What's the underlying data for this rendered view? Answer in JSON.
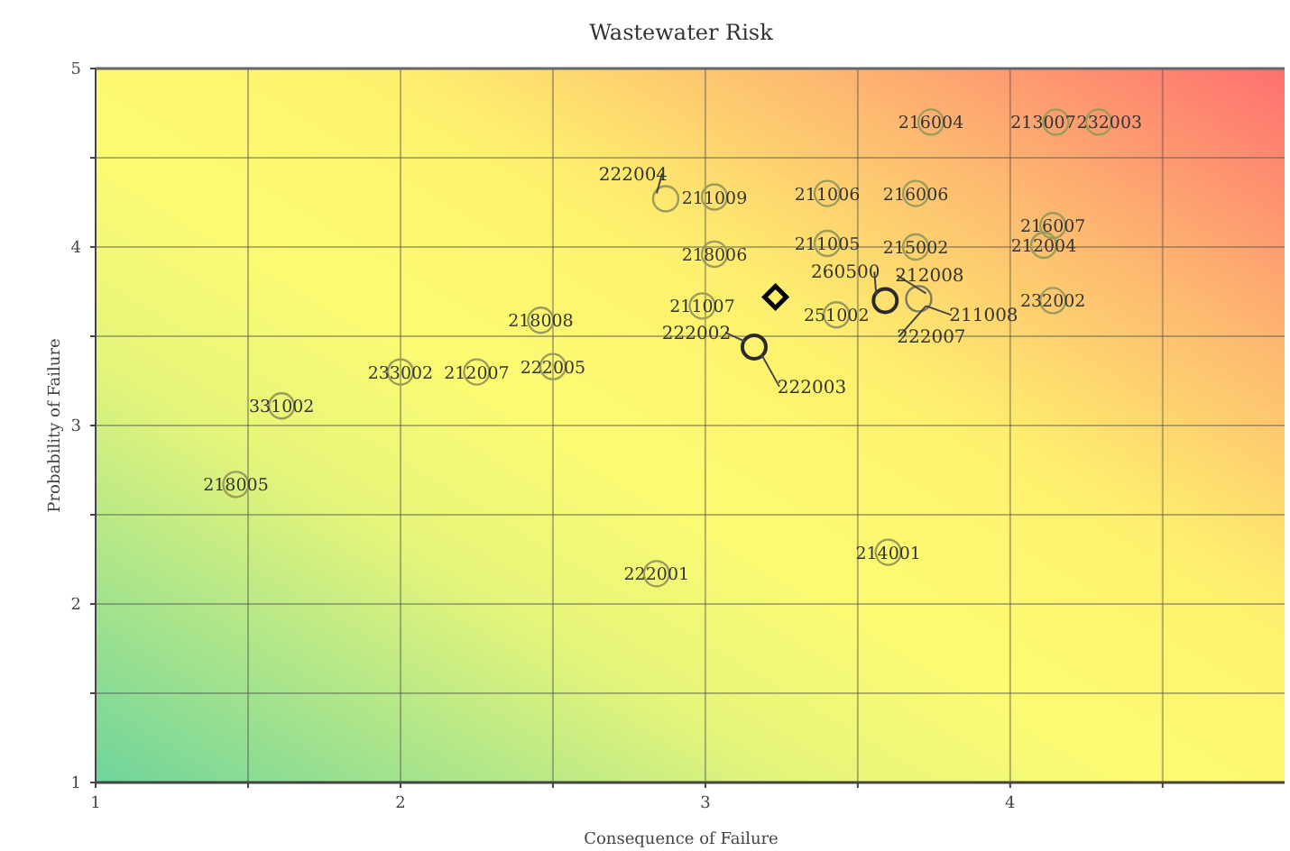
{
  "chart_data": {
    "type": "scatter",
    "title": "Wastewater Risk",
    "xlabel": "Consequence of Failure",
    "ylabel": "Probability of Failure",
    "xlim": [
      1,
      4.9
    ],
    "ylim": [
      1,
      5
    ],
    "xticks": [
      1,
      {
        "value": 1.5,
        "label": null
      },
      2,
      {
        "value": 2.5,
        "label": null
      },
      3,
      {
        "value": 3.5,
        "label": null
      },
      4,
      {
        "value": 4.5,
        "label": null
      }
    ],
    "yticks": [
      1,
      {
        "value": 1.5,
        "label": null
      },
      2,
      {
        "value": 2.5,
        "label": null
      },
      3,
      {
        "value": 3.5,
        "label": null
      },
      4,
      {
        "value": 4.5,
        "label": null
      },
      5
    ],
    "grid": true,
    "series": [
      {
        "color": "#9c9c5a",
        "marker": "circle",
        "x": [
          3.74,
          4.15,
          4.29,
          2.87,
          3.03,
          3.4,
          3.69,
          4.14,
          4.11,
          3.03,
          3.4,
          3.69,
          2.99,
          3.43,
          4.14,
          2.46,
          2.0,
          2.25,
          2.5,
          1.61,
          1.46,
          2.84,
          3.6
        ],
        "values": [
          4.7,
          4.7,
          4.7,
          4.27,
          4.28,
          4.3,
          4.3,
          4.12,
          4.01,
          3.96,
          4.02,
          4.0,
          3.67,
          3.62,
          3.7,
          3.59,
          3.3,
          3.3,
          3.33,
          3.11,
          2.67,
          2.17,
          2.29
        ]
      },
      {
        "color": "#2a2a2a",
        "marker": "circle",
        "x": [
          3.59,
          3.16
        ],
        "values": [
          3.7,
          3.44
        ]
      },
      {
        "color": "#7a7a60",
        "marker": "circle",
        "x": [
          3.7
        ],
        "values": [
          3.71
        ]
      },
      {
        "color": "#000000",
        "marker": "diamond",
        "x": [
          3.23
        ],
        "values": [
          3.72
        ]
      }
    ],
    "annotations": [
      {
        "text": "216004",
        "x": 3.74,
        "y": 4.7
      },
      {
        "text": "213007",
        "x": 4.15,
        "y": 4.7
      },
      {
        "text": "232003",
        "x": 4.29,
        "y": 4.7
      },
      {
        "text": "222004",
        "x": 2.87,
        "y": 4.27
      },
      {
        "text": "211009",
        "x": 3.03,
        "y": 4.28
      },
      {
        "text": "211006",
        "x": 3.4,
        "y": 4.3
      },
      {
        "text": "216006",
        "x": 3.69,
        "y": 4.3
      },
      {
        "text": "216007",
        "x": 4.14,
        "y": 4.12
      },
      {
        "text": "212004",
        "x": 4.11,
        "y": 4.01
      },
      {
        "text": "218006",
        "x": 3.03,
        "y": 3.96
      },
      {
        "text": "211005",
        "x": 3.4,
        "y": 4.02
      },
      {
        "text": "215002",
        "x": 3.69,
        "y": 4.0
      },
      {
        "text": "211007",
        "x": 2.99,
        "y": 3.67
      },
      {
        "text": "251002",
        "x": 3.43,
        "y": 3.62
      },
      {
        "text": "232002",
        "x": 4.14,
        "y": 3.7
      },
      {
        "text": "218008",
        "x": 2.46,
        "y": 3.59
      },
      {
        "text": "233002",
        "x": 2.0,
        "y": 3.3
      },
      {
        "text": "212007",
        "x": 2.25,
        "y": 3.3
      },
      {
        "text": "222005",
        "x": 2.5,
        "y": 3.33
      },
      {
        "text": "331002",
        "x": 1.61,
        "y": 3.11
      },
      {
        "text": "218005",
        "x": 1.46,
        "y": 2.67
      },
      {
        "text": "222001",
        "x": 2.84,
        "y": 2.17
      },
      {
        "text": "214001",
        "x": 3.6,
        "y": 2.29
      },
      {
        "text": "260500",
        "x": 3.59,
        "y": 3.7
      },
      {
        "text": "222002",
        "x": 3.16,
        "y": 3.44
      },
      {
        "text": "222003",
        "x": 3.16,
        "y": 3.44
      },
      {
        "text": "212008",
        "x": 3.7,
        "y": 3.71
      },
      {
        "text": "211008",
        "x": 3.7,
        "y": 3.71
      },
      {
        "text": "222007",
        "x": 3.7,
        "y": 3.71
      }
    ]
  }
}
